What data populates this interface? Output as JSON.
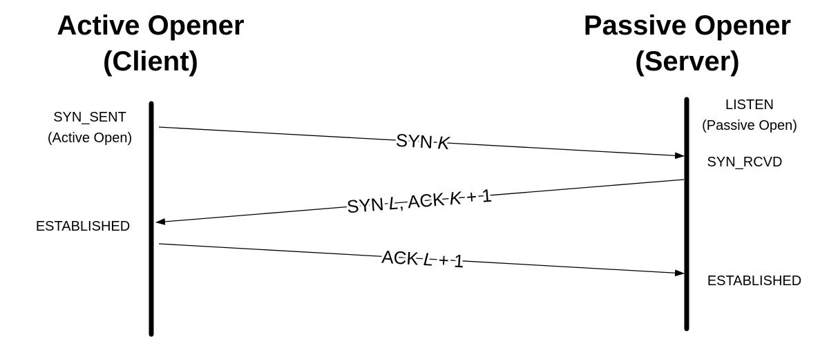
{
  "client": {
    "title_line1": "Active Opener",
    "title_line2": "(Client)",
    "states": {
      "syn_sent": "SYN_SENT",
      "syn_sent_note": "(Active Open)",
      "established": "ESTABLISHED"
    }
  },
  "server": {
    "title_line1": "Passive Opener",
    "title_line2": "(Server)",
    "states": {
      "listen": "LISTEN",
      "listen_note": "(Passive Open)",
      "syn_rcvd": "SYN_RCVD",
      "established": "ESTABLISHED"
    }
  },
  "messages": {
    "syn": {
      "prefix": "SYN ",
      "var": "K"
    },
    "syn_ack": {
      "p1": "SYN ",
      "v1": "L",
      "p2": ", ACK ",
      "v2": "K",
      "p3": " + 1"
    },
    "ack": {
      "prefix": "ACK ",
      "var": "L",
      "suffix": " + 1"
    }
  },
  "colors": {
    "line": "#000000",
    "background": "#ffffff"
  }
}
